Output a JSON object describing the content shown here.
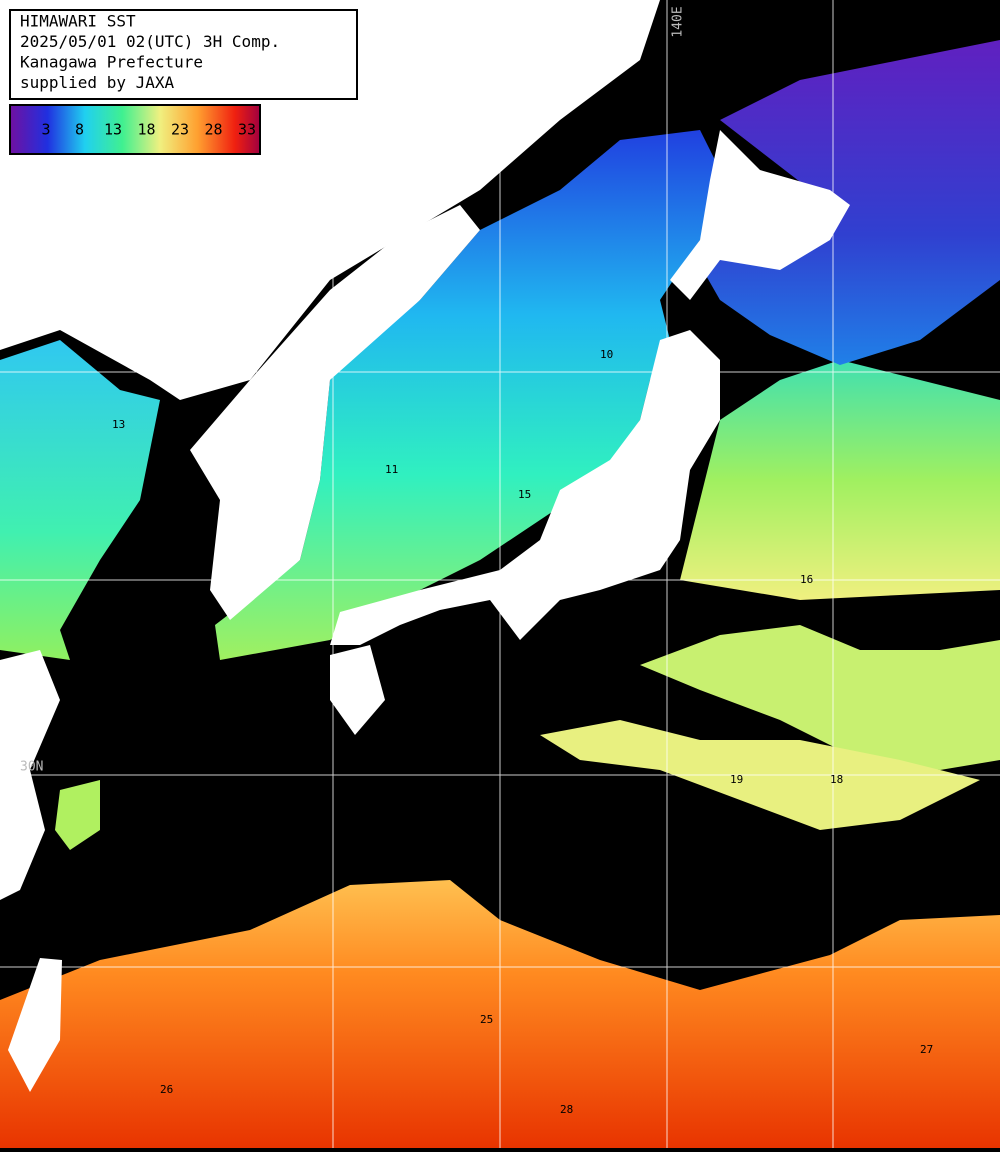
{
  "header": {
    "lines": [
      "HIMAWARI SST",
      "2025/05/01 02(UTC) 3H Comp.",
      "Kanagawa Prefecture",
      "supplied by JAXA"
    ]
  },
  "colorbar": {
    "labels": [
      3,
      8,
      13,
      18,
      23,
      28,
      33
    ]
  },
  "grid_labels": {
    "lon": "140E",
    "lat": "30N"
  },
  "contour_labels": [
    "10",
    "11",
    "13",
    "15",
    "16",
    "18",
    "19",
    "25",
    "26",
    "27",
    "28"
  ]
}
